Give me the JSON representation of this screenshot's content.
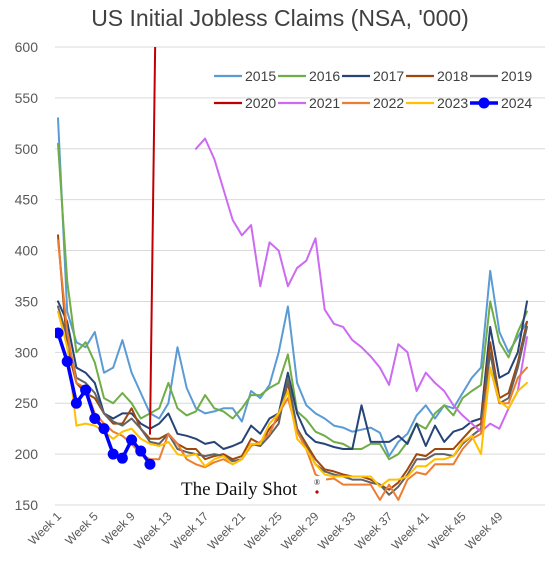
{
  "chart_data": {
    "type": "line",
    "title": "US Initial Jobless Claims (NSA, '000)",
    "watermark": "The Daily Shot",
    "watermark_mark": "®",
    "xlabel": "",
    "ylabel": "",
    "xlim": [
      1,
      52
    ],
    "ylim": [
      150,
      600
    ],
    "y_ticks": [
      150,
      200,
      250,
      300,
      350,
      400,
      450,
      500,
      550,
      600
    ],
    "x_ticks": [
      {
        "x": 1,
        "label": "Week 1"
      },
      {
        "x": 5,
        "label": "Week 5"
      },
      {
        "x": 9,
        "label": "Week 9"
      },
      {
        "x": 13,
        "label": "Week 13"
      },
      {
        "x": 17,
        "label": "Week 17"
      },
      {
        "x": 21,
        "label": "Week 21"
      },
      {
        "x": 25,
        "label": "Week 25"
      },
      {
        "x": 29,
        "label": "Week 29"
      },
      {
        "x": 33,
        "label": "Week 33"
      },
      {
        "x": 37,
        "label": "Week 37"
      },
      {
        "x": 41,
        "label": "Week 41"
      },
      {
        "x": 45,
        "label": "Week 45"
      },
      {
        "x": 49,
        "label": "Week 49"
      }
    ],
    "grid": "horizontal",
    "legend_position": "top-right",
    "series": [
      {
        "name": "2015",
        "color": "#5b9bd5",
        "values": [
          530,
          340,
          310,
          305,
          320,
          280,
          285,
          312,
          280,
          260,
          240,
          235,
          250,
          305,
          265,
          245,
          240,
          242,
          245,
          245,
          232,
          262,
          255,
          268,
          300,
          345,
          270,
          248,
          240,
          235,
          228,
          226,
          222,
          224,
          226,
          221,
          198,
          212,
          220,
          238,
          248,
          235,
          248,
          245,
          260,
          275,
          285,
          380,
          320,
          300,
          315,
          330
        ]
      },
      {
        "name": "2016",
        "color": "#70ad47",
        "values": [
          505,
          370,
          300,
          310,
          290,
          255,
          250,
          260,
          250,
          235,
          240,
          245,
          270,
          245,
          238,
          242,
          258,
          245,
          242,
          235,
          245,
          258,
          258,
          265,
          270,
          298,
          242,
          234,
          222,
          218,
          212,
          210,
          205,
          205,
          210,
          210,
          195,
          200,
          212,
          230,
          225,
          240,
          248,
          238,
          255,
          262,
          268,
          350,
          310,
          295,
          320,
          340
        ]
      },
      {
        "name": "2017",
        "color": "#264478",
        "values": [
          350,
          330,
          285,
          280,
          270,
          240,
          235,
          240,
          240,
          230,
          225,
          230,
          240,
          220,
          218,
          215,
          210,
          212,
          205,
          208,
          212,
          228,
          220,
          235,
          240,
          280,
          240,
          220,
          212,
          210,
          207,
          205,
          205,
          248,
          212,
          212,
          212,
          218,
          210,
          230,
          208,
          228,
          212,
          222,
          225,
          232,
          235,
          325,
          275,
          280,
          300,
          350
        ]
      },
      {
        "name": "2018",
        "color": "#9e480e",
        "values": [
          415,
          305,
          270,
          260,
          255,
          240,
          230,
          230,
          245,
          225,
          215,
          215,
          220,
          210,
          205,
          205,
          195,
          198,
          200,
          195,
          198,
          215,
          210,
          225,
          235,
          270,
          225,
          210,
          195,
          185,
          183,
          180,
          178,
          178,
          175,
          170,
          165,
          172,
          185,
          200,
          198,
          205,
          205,
          205,
          215,
          225,
          230,
          310,
          255,
          260,
          290,
          330
        ]
      },
      {
        "name": "2019",
        "color": "#636363",
        "values": [
          345,
          315,
          275,
          270,
          260,
          240,
          232,
          228,
          235,
          225,
          212,
          210,
          220,
          205,
          202,
          200,
          198,
          200,
          198,
          193,
          195,
          210,
          208,
          218,
          230,
          275,
          225,
          207,
          190,
          183,
          180,
          178,
          175,
          175,
          172,
          170,
          160,
          168,
          180,
          195,
          195,
          200,
          200,
          198,
          210,
          218,
          225,
          300,
          250,
          255,
          285,
          325
        ]
      },
      {
        "name": "2020",
        "color": "#c00000",
        "values": [
          null,
          null,
          null,
          null,
          null,
          null,
          null,
          null,
          null,
          null,
          220,
          900
        ]
      },
      {
        "name": "2021",
        "color": "#cc6bf2",
        "values": [
          null,
          null,
          null,
          null,
          null,
          null,
          null,
          null,
          null,
          null,
          null,
          null,
          null,
          null,
          null,
          500,
          510,
          490,
          460,
          430,
          415,
          425,
          365,
          408,
          400,
          365,
          383,
          390,
          412,
          342,
          328,
          325,
          312,
          305,
          296,
          285,
          268,
          308,
          300,
          262,
          280,
          270,
          262,
          248,
          238,
          230,
          222,
          230,
          225,
          245,
          262,
          315
        ]
      },
      {
        "name": "2022",
        "color": "#ed7d31",
        "values": [
          410,
          320,
          270,
          265,
          240,
          230,
          222,
          218,
          210,
          200,
          195,
          195,
          220,
          210,
          195,
          190,
          187,
          192,
          195,
          190,
          195,
          208,
          212,
          220,
          240,
          255,
          222,
          205,
          180,
          175,
          176,
          170,
          170,
          170,
          170,
          155,
          170,
          155,
          175,
          182,
          180,
          190,
          190,
          190,
          205,
          215,
          220,
          285,
          250,
          250,
          275,
          285
        ]
      },
      {
        "name": "2023",
        "color": "#ffc000",
        "values": [
          340,
          305,
          228,
          230,
          228,
          222,
          215,
          222,
          225,
          215,
          210,
          208,
          212,
          200,
          198,
          200,
          188,
          195,
          198,
          190,
          195,
          210,
          210,
          230,
          240,
          262,
          215,
          205,
          190,
          180,
          178,
          178,
          178,
          178,
          178,
          168,
          175,
          175,
          178,
          188,
          188,
          195,
          195,
          198,
          212,
          218,
          200,
          285,
          252,
          245,
          262,
          270
        ]
      },
      {
        "name": "2024",
        "color": "#0000ff",
        "values": [
          319,
          291,
          250,
          263,
          235,
          225,
          200,
          196,
          214,
          203,
          190
        ]
      }
    ]
  }
}
